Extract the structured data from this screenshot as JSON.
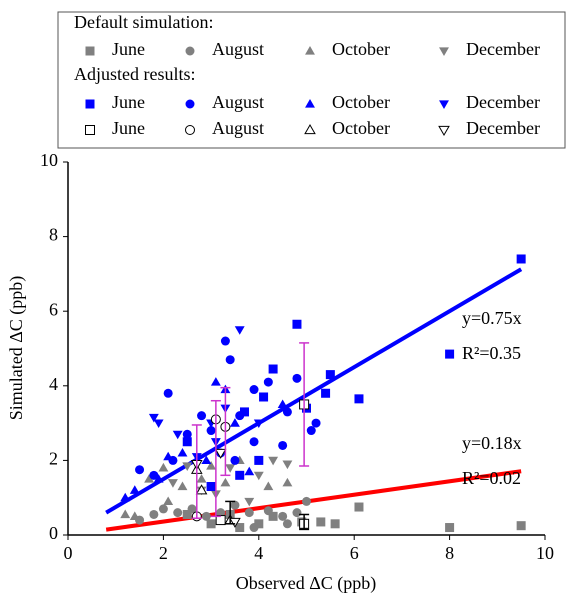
{
  "chart_data": {
    "type": "scatter",
    "xlabel": "Observed ΔC (ppb)",
    "ylabel": "Simulated ΔC (ppb)",
    "xlim": [
      0,
      10
    ],
    "ylim": [
      0,
      10
    ],
    "xticks": [
      0,
      2,
      4,
      6,
      8,
      10
    ],
    "yticks": [
      0,
      2,
      4,
      6,
      8,
      10
    ],
    "legend_titles": [
      "Default simulation:",
      "Adjusted results:"
    ],
    "series": [
      {
        "name": "June",
        "color": "#808080",
        "marker": "square",
        "filled": true,
        "x": [
          9.5,
          8.0,
          6.1,
          5.6,
          5.3,
          4.9,
          4.3,
          4.0,
          3.6,
          3.0,
          2.5,
          3.4
        ],
        "values": [
          0.25,
          0.2,
          0.75,
          0.3,
          0.35,
          0.35,
          0.5,
          0.3,
          0.2,
          0.3,
          0.55,
          0.55
        ]
      },
      {
        "name": "August",
        "color": "#808080",
        "marker": "circle",
        "filled": true,
        "x": [
          1.5,
          1.8,
          2.0,
          2.3,
          2.6,
          2.9,
          3.2,
          3.5,
          3.8,
          4.2,
          4.5,
          4.8,
          5.0,
          4.6,
          3.9
        ],
        "values": [
          0.4,
          0.55,
          0.7,
          0.6,
          0.7,
          0.5,
          0.6,
          0.8,
          0.6,
          0.65,
          0.5,
          0.6,
          0.9,
          0.3,
          0.2
        ]
      },
      {
        "name": "October",
        "color": "#808080",
        "marker": "triangle-up",
        "filled": true,
        "x": [
          1.2,
          1.4,
          2.1,
          2.4,
          2.8,
          3.0,
          3.3,
          3.6,
          4.2,
          4.6,
          1.7,
          2.0
        ],
        "values": [
          0.55,
          0.5,
          0.9,
          1.3,
          1.5,
          1.85,
          1.4,
          2.0,
          1.3,
          1.4,
          1.5,
          1.8
        ]
      },
      {
        "name": "December",
        "color": "#808080",
        "marker": "triangle-down",
        "filled": true,
        "x": [
          2.5,
          2.8,
          3.1,
          3.4,
          4.0,
          4.3,
          4.6,
          2.2,
          3.8
        ],
        "values": [
          1.85,
          1.2,
          1.1,
          1.8,
          1.6,
          2.0,
          1.9,
          1.4,
          0.9
        ]
      },
      {
        "name": "June",
        "color": "#0000ff",
        "marker": "square",
        "filled": true,
        "x": [
          9.5,
          8.0,
          4.8,
          6.1,
          5.5,
          5.4,
          4.3,
          4.1,
          3.7,
          3.6,
          4.0,
          2.5,
          3.0,
          5.0
        ],
        "values": [
          7.4,
          4.85,
          5.65,
          3.65,
          4.3,
          3.8,
          4.45,
          3.7,
          3.3,
          1.6,
          2.0,
          2.5,
          1.3,
          3.4
        ]
      },
      {
        "name": "August",
        "color": "#0000ff",
        "marker": "circle",
        "filled": true,
        "x": [
          3.3,
          3.4,
          1.5,
          1.8,
          2.2,
          2.5,
          2.8,
          3.0,
          3.2,
          3.6,
          3.9,
          4.2,
          4.6,
          4.8,
          5.1,
          5.2,
          3.9,
          4.5,
          2.1,
          3.5
        ],
        "values": [
          5.2,
          4.7,
          1.75,
          1.6,
          2.0,
          2.7,
          3.2,
          2.8,
          2.2,
          3.2,
          3.9,
          4.1,
          3.3,
          4.2,
          2.8,
          3.0,
          2.5,
          2.4,
          3.8,
          2.0
        ]
      },
      {
        "name": "October",
        "color": "#0000ff",
        "marker": "triangle-up",
        "filled": true,
        "x": [
          1.2,
          1.4,
          1.9,
          2.1,
          2.4,
          3.1,
          3.5,
          3.3,
          4.5,
          2.9,
          3.8
        ],
        "values": [
          1.0,
          1.2,
          1.5,
          2.1,
          2.2,
          4.1,
          3.0,
          3.9,
          3.5,
          2.0,
          1.7
        ]
      },
      {
        "name": "December",
        "color": "#0000ff",
        "marker": "triangle-down",
        "filled": true,
        "x": [
          3.6,
          1.8,
          1.9,
          2.7,
          3.0,
          3.3,
          4.0,
          2.3,
          3.1
        ],
        "values": [
          5.5,
          3.15,
          3.0,
          2.1,
          3.0,
          3.4,
          3.0,
          2.7,
          2.5
        ]
      },
      {
        "name": "June",
        "color": "#000000",
        "marker": "square",
        "filled": false,
        "x": [
          4.95,
          4.95,
          3.2
        ],
        "values": [
          3.5,
          0.3,
          0.4
        ]
      },
      {
        "name": "August",
        "color": "#000000",
        "marker": "circle",
        "filled": false,
        "x": [
          3.3,
          2.7,
          3.1
        ],
        "values": [
          2.9,
          0.5,
          3.1
        ]
      },
      {
        "name": "October",
        "color": "#000000",
        "marker": "triangle-up",
        "filled": false,
        "x": [
          2.7,
          3.4,
          2.8
        ],
        "values": [
          1.75,
          0.4,
          1.2
        ]
      },
      {
        "name": "December",
        "color": "#000000",
        "marker": "triangle-down",
        "filled": false,
        "x": [
          2.7,
          3.5,
          3.2
        ],
        "values": [
          1.9,
          0.35,
          2.2
        ]
      }
    ],
    "error_bars": [
      {
        "color": "#cc33cc",
        "x": 2.7,
        "low": 0.45,
        "high": 2.95
      },
      {
        "color": "#cc33cc",
        "x": 3.1,
        "low": 0.5,
        "high": 3.6
      },
      {
        "color": "#cc33cc",
        "x": 3.3,
        "low": 1.6,
        "high": 3.95
      },
      {
        "color": "#cc33cc",
        "x": 4.95,
        "low": 1.85,
        "high": 5.15
      },
      {
        "color": "#000000",
        "x": 3.4,
        "low": 0.3,
        "high": 0.9
      },
      {
        "color": "#000000",
        "x": 4.95,
        "low": 0.15,
        "high": 0.55
      }
    ],
    "fits": [
      {
        "color": "#0000ff",
        "x": [
          0.8,
          9.5
        ],
        "values": [
          0.6,
          7.125
        ],
        "label": "y=0.75x",
        "r2": "R²=0.35"
      },
      {
        "color": "#ff0000",
        "x": [
          0.8,
          9.5
        ],
        "values": [
          0.144,
          1.71
        ],
        "label": "y=0.18x",
        "r2": "R²=0.02"
      }
    ]
  }
}
